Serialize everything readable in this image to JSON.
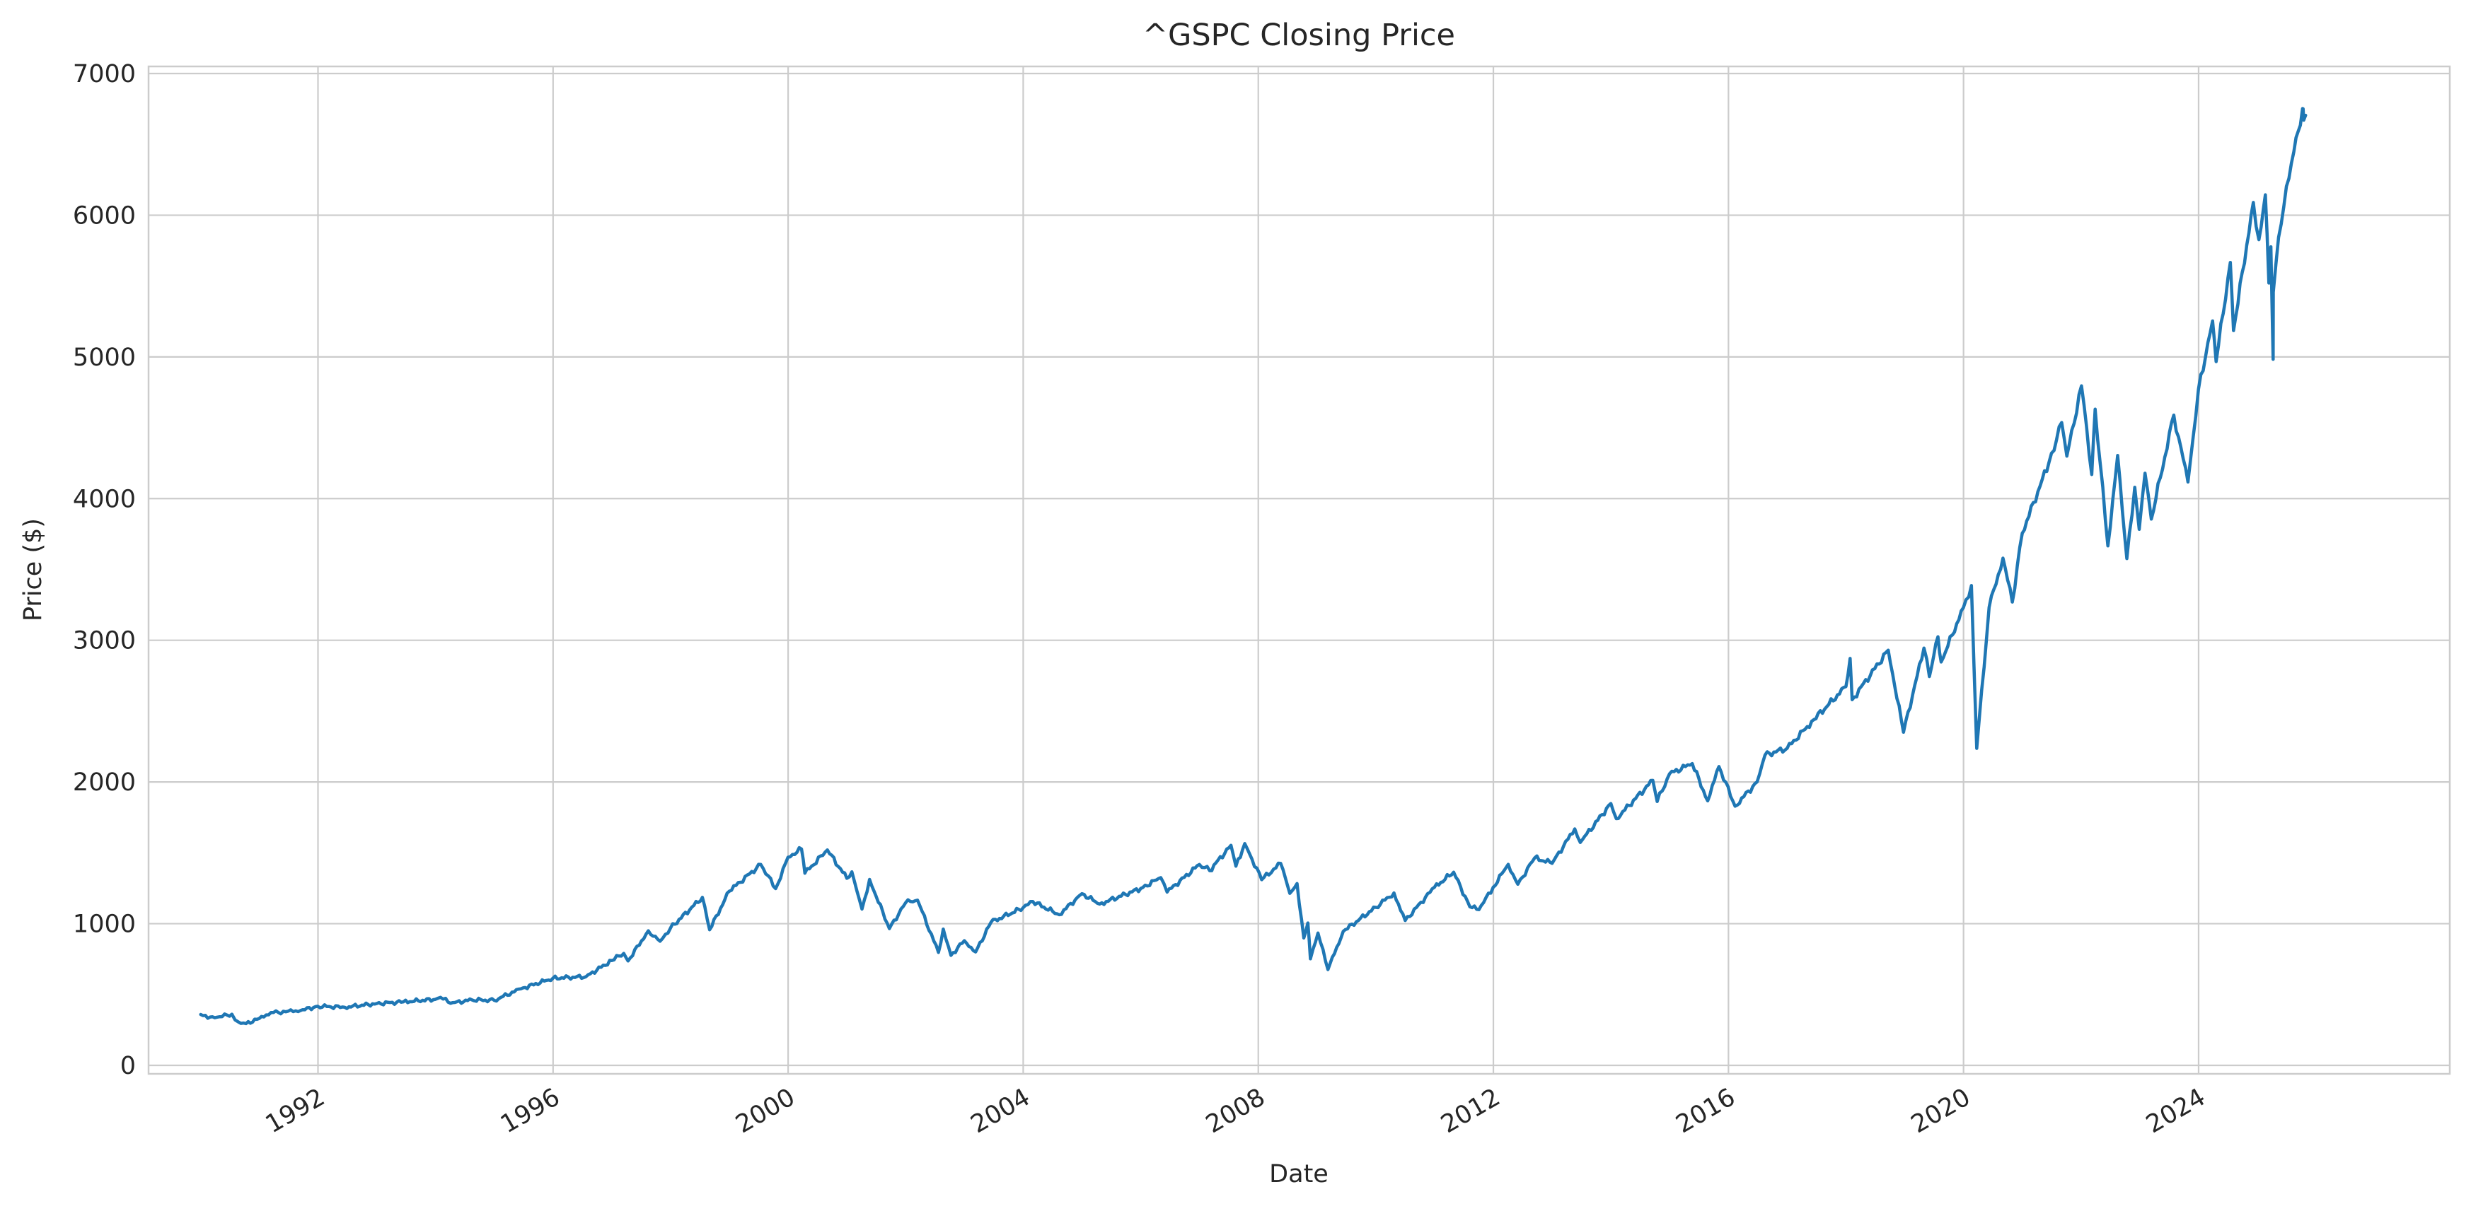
{
  "chart_data": {
    "type": "line",
    "title": "^GSPC Closing Price",
    "xlabel": "Date",
    "ylabel": "Price ($)",
    "xlim": [
      "1989-02-12",
      "2028-04-10"
    ],
    "ylim": [
      -60,
      7050
    ],
    "x_ticks": [
      "1992",
      "1996",
      "2000",
      "2004",
      "2008",
      "2012",
      "2016",
      "2020",
      "2024"
    ],
    "y_ticks": [
      0,
      1000,
      2000,
      3000,
      4000,
      5000,
      6000,
      7000
    ],
    "grid": true,
    "series": [
      {
        "color": "#1f77b4",
        "points": [
          [
            "1990-01-02",
            359
          ],
          [
            "1990-02-15",
            332
          ],
          [
            "1990-04-15",
            340
          ],
          [
            "1990-07-15",
            361
          ],
          [
            "1990-08-23",
            307
          ],
          [
            "1990-10-11",
            295
          ],
          [
            "1990-12-31",
            330
          ],
          [
            "1991-03-15",
            373
          ],
          [
            "1991-06-15",
            378
          ],
          [
            "1991-09-15",
            387
          ],
          [
            "1991-12-31",
            417
          ],
          [
            "1992-06-15",
            410
          ],
          [
            "1992-12-31",
            436
          ],
          [
            "1993-06-15",
            448
          ],
          [
            "1993-12-31",
            466
          ],
          [
            "1994-02-01",
            480
          ],
          [
            "1994-04-04",
            438
          ],
          [
            "1994-08-15",
            462
          ],
          [
            "1994-12-31",
            459
          ],
          [
            "1995-06-15",
            540
          ],
          [
            "1995-12-31",
            615
          ],
          [
            "1996-07-24",
            626
          ],
          [
            "1996-12-31",
            740
          ],
          [
            "1997-03-15",
            790
          ],
          [
            "1997-04-11",
            737
          ],
          [
            "1997-08-15",
            950
          ],
          [
            "1997-10-27",
            876
          ],
          [
            "1997-12-31",
            970
          ],
          [
            "1998-07-17",
            1186
          ],
          [
            "1998-08-31",
            957
          ],
          [
            "1998-12-31",
            1229
          ],
          [
            "1999-07-15",
            1418
          ],
          [
            "1999-10-15",
            1247
          ],
          [
            "1999-12-31",
            1469
          ],
          [
            "2000-03-24",
            1527
          ],
          [
            "2000-04-14",
            1356
          ],
          [
            "2000-09-01",
            1520
          ],
          [
            "2000-12-31",
            1320
          ],
          [
            "2001-01-31",
            1366
          ],
          [
            "2001-04-04",
            1103
          ],
          [
            "2001-05-21",
            1312
          ],
          [
            "2001-09-21",
            965
          ],
          [
            "2001-12-31",
            1148
          ],
          [
            "2002-03-15",
            1166
          ],
          [
            "2002-07-23",
            797
          ],
          [
            "2002-08-22",
            962
          ],
          [
            "2002-10-09",
            776
          ],
          [
            "2002-12-31",
            880
          ],
          [
            "2003-03-11",
            800
          ],
          [
            "2003-06-15",
            1010
          ],
          [
            "2003-12-31",
            1112
          ],
          [
            "2004-03-01",
            1156
          ],
          [
            "2004-08-12",
            1063
          ],
          [
            "2004-12-31",
            1212
          ],
          [
            "2005-04-20",
            1138
          ],
          [
            "2005-12-31",
            1248
          ],
          [
            "2006-05-05",
            1325
          ],
          [
            "2006-06-13",
            1223
          ],
          [
            "2006-12-31",
            1418
          ],
          [
            "2007-03-05",
            1374
          ],
          [
            "2007-07-15",
            1553
          ],
          [
            "2007-08-15",
            1406
          ],
          [
            "2007-10-09",
            1565
          ],
          [
            "2008-01-22",
            1310
          ],
          [
            "2008-05-19",
            1426
          ],
          [
            "2008-07-15",
            1214
          ],
          [
            "2008-08-29",
            1283
          ],
          [
            "2008-10-10",
            899
          ],
          [
            "2008-11-04",
            1005
          ],
          [
            "2008-11-20",
            752
          ],
          [
            "2009-01-06",
            934
          ],
          [
            "2009-03-09",
            676
          ],
          [
            "2009-06-12",
            946
          ],
          [
            "2009-12-31",
            1115
          ],
          [
            "2010-04-23",
            1217
          ],
          [
            "2010-07-02",
            1022
          ],
          [
            "2010-12-31",
            1257
          ],
          [
            "2011-04-29",
            1363
          ],
          [
            "2011-08-08",
            1119
          ],
          [
            "2011-10-03",
            1099
          ],
          [
            "2011-12-31",
            1257
          ],
          [
            "2012-04-02",
            1419
          ],
          [
            "2012-06-01",
            1278
          ],
          [
            "2012-09-14",
            1465
          ],
          [
            "2012-12-31",
            1426
          ],
          [
            "2013-05-21",
            1669
          ],
          [
            "2013-06-24",
            1573
          ],
          [
            "2013-12-31",
            1848
          ],
          [
            "2014-02-03",
            1741
          ],
          [
            "2014-09-18",
            2011
          ],
          [
            "2014-10-15",
            1862
          ],
          [
            "2014-12-31",
            2058
          ],
          [
            "2015-05-21",
            2130
          ],
          [
            "2015-08-25",
            1867
          ],
          [
            "2015-11-03",
            2109
          ],
          [
            "2016-02-11",
            1829
          ],
          [
            "2016-06-27",
            2000
          ],
          [
            "2016-08-15",
            2190
          ],
          [
            "2016-12-31",
            2238
          ],
          [
            "2017-06-15",
            2440
          ],
          [
            "2017-12-31",
            2673
          ],
          [
            "2018-01-26",
            2872
          ],
          [
            "2018-02-08",
            2581
          ],
          [
            "2018-09-20",
            2930
          ],
          [
            "2018-12-24",
            2351
          ],
          [
            "2019-04-30",
            2945
          ],
          [
            "2019-06-03",
            2744
          ],
          [
            "2019-07-26",
            3025
          ],
          [
            "2019-08-15",
            2847
          ],
          [
            "2019-12-31",
            3230
          ],
          [
            "2020-02-19",
            3386
          ],
          [
            "2020-03-23",
            2237
          ],
          [
            "2020-06-08",
            3232
          ],
          [
            "2020-09-02",
            3580
          ],
          [
            "2020-10-30",
            3270
          ],
          [
            "2020-12-31",
            3756
          ],
          [
            "2021-06-15",
            4255
          ],
          [
            "2021-09-02",
            4537
          ],
          [
            "2021-10-04",
            4300
          ],
          [
            "2022-01-03",
            4796
          ],
          [
            "2022-03-08",
            4170
          ],
          [
            "2022-03-29",
            4631
          ],
          [
            "2022-06-16",
            3666
          ],
          [
            "2022-08-16",
            4305
          ],
          [
            "2022-10-12",
            3577
          ],
          [
            "2022-11-30",
            4080
          ],
          [
            "2022-12-28",
            3783
          ],
          [
            "2023-02-02",
            4179
          ],
          [
            "2023-03-13",
            3855
          ],
          [
            "2023-07-31",
            4589
          ],
          [
            "2023-10-27",
            4117
          ],
          [
            "2023-12-31",
            4770
          ],
          [
            "2024-03-28",
            5254
          ],
          [
            "2024-04-19",
            4967
          ],
          [
            "2024-07-16",
            5667
          ],
          [
            "2024-08-05",
            5186
          ],
          [
            "2024-12-06",
            6090
          ],
          [
            "2025-01-10",
            5827
          ],
          [
            "2025-02-19",
            6144
          ],
          [
            "2025-03-13",
            5521
          ],
          [
            "2025-03-25",
            5777
          ],
          [
            "2025-04-08",
            4983
          ],
          [
            "2025-04-09",
            5457
          ],
          [
            "2025-05-12",
            5844
          ],
          [
            "2025-06-30",
            6205
          ],
          [
            "2025-08-15",
            6449
          ],
          [
            "2025-10-08",
            6753
          ],
          [
            "2025-10-15",
            6671
          ],
          [
            "2025-10-27",
            6705
          ]
        ]
      }
    ]
  }
}
